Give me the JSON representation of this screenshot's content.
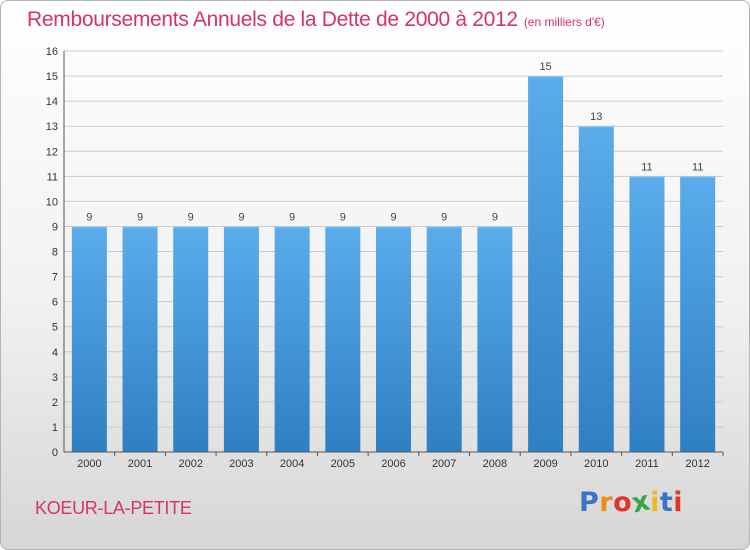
{
  "header": {
    "title": "Remboursements Annuels de la Dette de 2000 à 2012",
    "unit_note": "(en milliers d'€)"
  },
  "footer": {
    "commune": "KOEUR-LA-PETITE",
    "logo_letters": [
      "P",
      "r",
      "o",
      "x",
      "i",
      "t",
      "i"
    ],
    "logo_colors": [
      "#3a74c4",
      "#f08c1c",
      "#e2352a",
      "#3aa548",
      "#f3b81f",
      "#3a74c4",
      "#e2352a"
    ]
  },
  "colors": {
    "title": "#d5336a",
    "bar_top": "#5aaceb",
    "bar_bottom": "#2f7fc3",
    "axis": "#555555",
    "grid": "#cccccc"
  },
  "chart_data": {
    "type": "bar",
    "title": "Remboursements Annuels de la Dette de 2000 à 2012",
    "unit": "(en milliers d'€)",
    "xlabel": "",
    "ylabel": "",
    "categories": [
      "2000",
      "2001",
      "2002",
      "2003",
      "2004",
      "2005",
      "2006",
      "2007",
      "2008",
      "2009",
      "2010",
      "2011",
      "2012"
    ],
    "values": [
      9,
      9,
      9,
      9,
      9,
      9,
      9,
      9,
      9,
      15,
      13,
      11,
      11
    ],
    "data_labels": [
      "9",
      "9",
      "9",
      "9",
      "9",
      "9",
      "9",
      "9",
      "9",
      "15",
      "13",
      "11",
      "11"
    ],
    "yticks": [
      0,
      1,
      2,
      3,
      4,
      5,
      6,
      7,
      8,
      9,
      10,
      11,
      12,
      13,
      14,
      15,
      16
    ],
    "ylim": [
      0,
      16
    ],
    "grid": true,
    "legend": "none"
  }
}
